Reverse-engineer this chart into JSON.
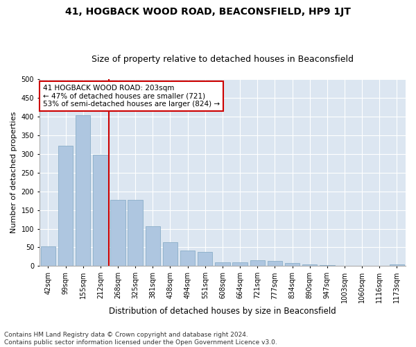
{
  "title": "41, HOGBACK WOOD ROAD, BEACONSFIELD, HP9 1JT",
  "subtitle": "Size of property relative to detached houses in Beaconsfield",
  "xlabel": "Distribution of detached houses by size in Beaconsfield",
  "ylabel": "Number of detached properties",
  "footer_line1": "Contains HM Land Registry data © Crown copyright and database right 2024.",
  "footer_line2": "Contains public sector information licensed under the Open Government Licence v3.0.",
  "categories": [
    "42sqm",
    "99sqm",
    "155sqm",
    "212sqm",
    "268sqm",
    "325sqm",
    "381sqm",
    "438sqm",
    "494sqm",
    "551sqm",
    "608sqm",
    "664sqm",
    "721sqm",
    "777sqm",
    "834sqm",
    "890sqm",
    "947sqm",
    "1003sqm",
    "1060sqm",
    "1116sqm",
    "1173sqm"
  ],
  "values": [
    53,
    322,
    403,
    298,
    177,
    177,
    106,
    63,
    42,
    37,
    11,
    10,
    15,
    13,
    8,
    5,
    2,
    1,
    1,
    1,
    5
  ],
  "bar_color": "#aec6e0",
  "bar_edge_color": "#8aaec8",
  "bg_color": "#dce6f1",
  "grid_color": "#ffffff",
  "vline_color": "#cc0000",
  "vline_x": 3.5,
  "annotation_text": "41 HOGBACK WOOD ROAD: 203sqm\n← 47% of detached houses are smaller (721)\n53% of semi-detached houses are larger (824) →",
  "annotation_box_color": "#cc0000",
  "ylim": [
    0,
    500
  ],
  "yticks": [
    0,
    50,
    100,
    150,
    200,
    250,
    300,
    350,
    400,
    450,
    500
  ],
  "fig_width": 6.0,
  "fig_height": 5.0,
  "dpi": 100,
  "title_fontsize": 10,
  "subtitle_fontsize": 9,
  "tick_fontsize": 7,
  "xlabel_fontsize": 8.5,
  "ylabel_fontsize": 8,
  "annotation_fontsize": 7.5,
  "footer_fontsize": 6.5,
  "bg_figure": "#ffffff"
}
